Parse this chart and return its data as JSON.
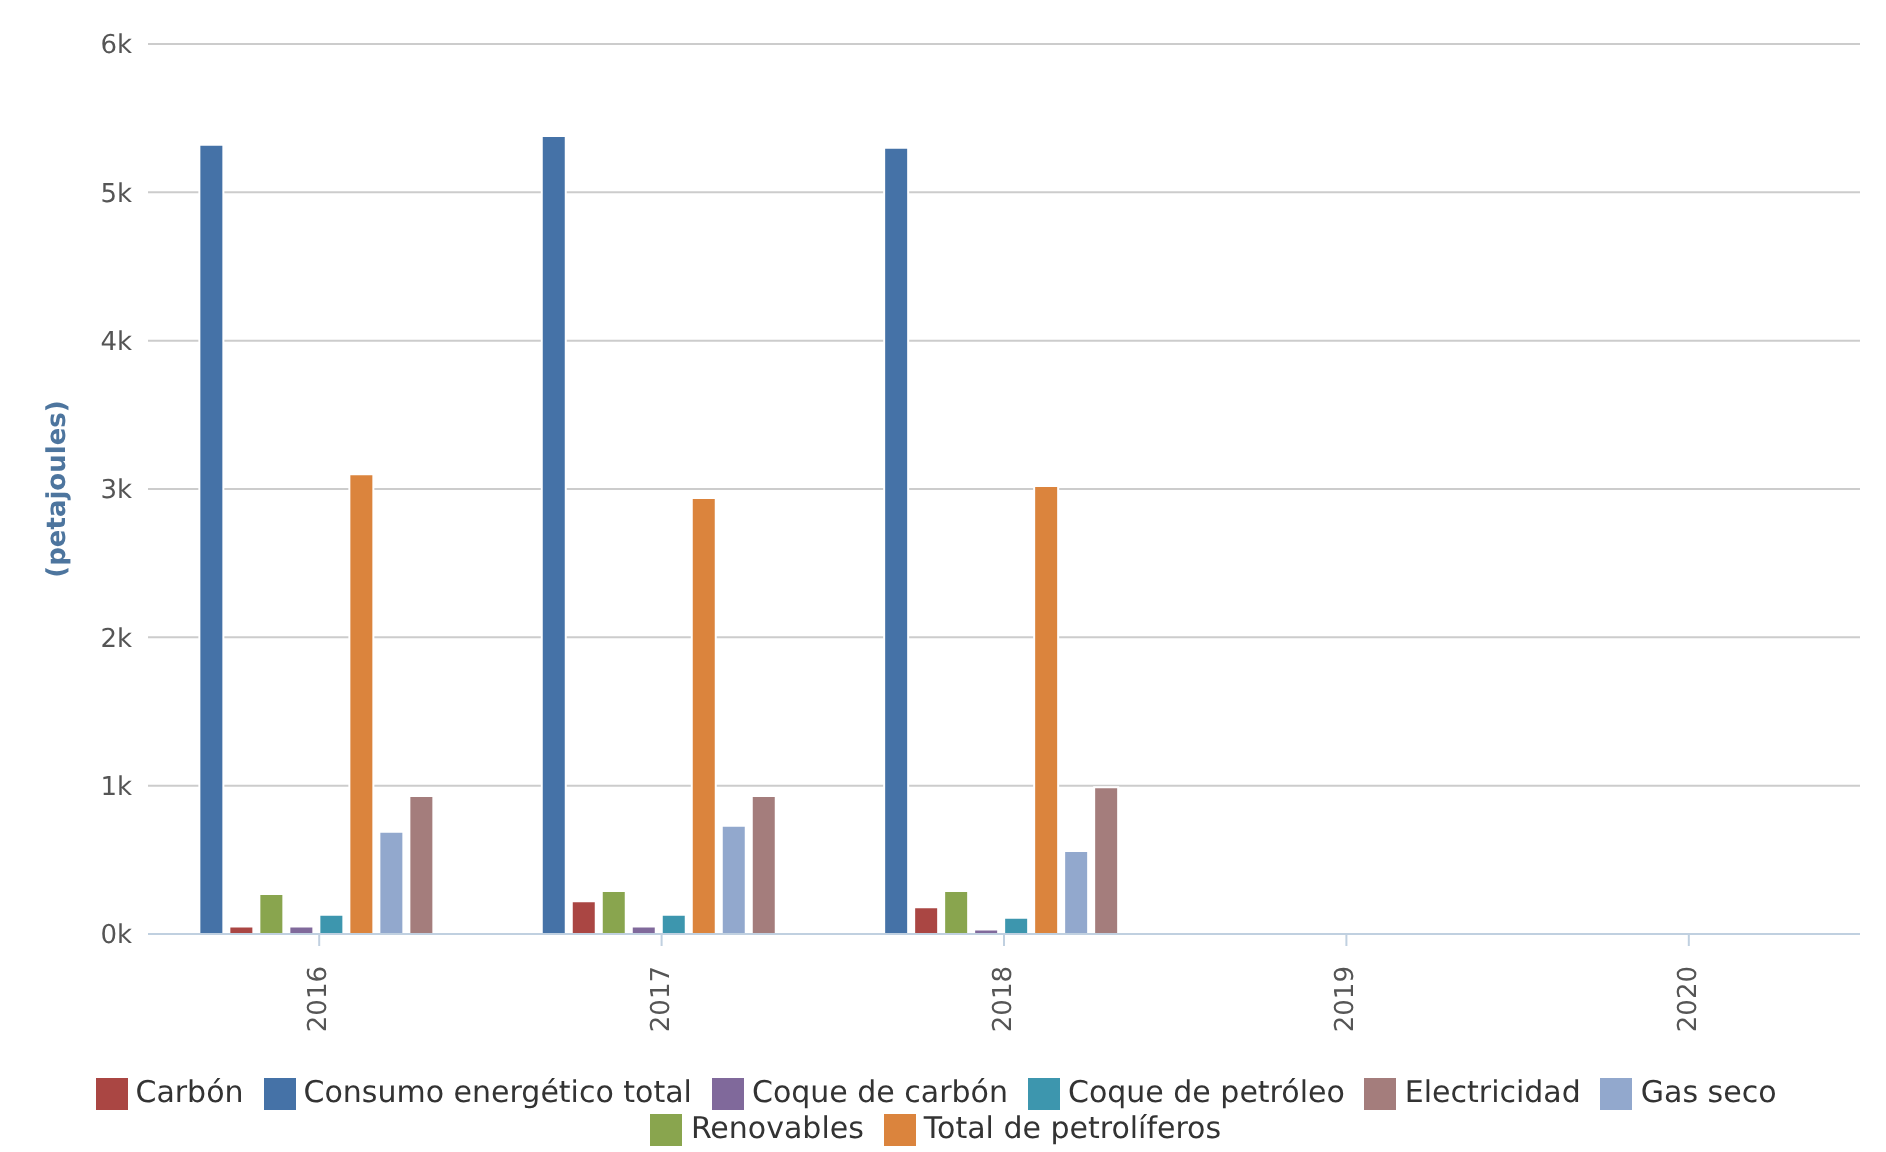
{
  "chart_data": {
    "type": "bar",
    "ylabel": "(petajoules)",
    "categories": [
      "2016",
      "2017",
      "2018",
      "2019",
      "2020"
    ],
    "series": [
      {
        "name": "Consumo energético total",
        "color": "#4572a7",
        "values": [
          5320,
          5380,
          5300,
          null,
          null
        ]
      },
      {
        "name": "Carbón",
        "color": "#aa4643",
        "values": [
          50,
          220,
          180,
          null,
          null
        ]
      },
      {
        "name": "Renovables",
        "color": "#89a54e",
        "values": [
          270,
          290,
          290,
          null,
          null
        ]
      },
      {
        "name": "Coque de carbón",
        "color": "#80699b",
        "values": [
          50,
          50,
          30,
          null,
          null
        ]
      },
      {
        "name": "Coque de petróleo",
        "color": "#3d96ae",
        "values": [
          130,
          130,
          110,
          null,
          null
        ]
      },
      {
        "name": "Total de petrolíferos",
        "color": "#db843d",
        "values": [
          3100,
          2940,
          3020,
          null,
          null
        ]
      },
      {
        "name": "Gas seco",
        "color": "#92a8cd",
        "values": [
          690,
          730,
          560,
          null,
          null
        ]
      },
      {
        "name": "Electricidad",
        "color": "#a47d7c",
        "values": [
          930,
          930,
          990,
          null,
          null
        ]
      }
    ],
    "ylim": [
      0,
      6000
    ],
    "yticks": [
      {
        "value": 0,
        "label": "0k"
      },
      {
        "value": 1000,
        "label": "1k"
      },
      {
        "value": 2000,
        "label": "2k"
      },
      {
        "value": 3000,
        "label": "3k"
      },
      {
        "value": 4000,
        "label": "4k"
      },
      {
        "value": 5000,
        "label": "5k"
      },
      {
        "value": 6000,
        "label": "6k"
      }
    ],
    "grid": "y",
    "legend": "bottom"
  }
}
